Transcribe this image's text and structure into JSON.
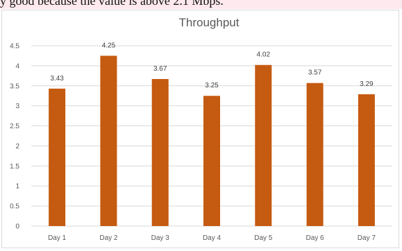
{
  "caption_text": "y good because the value is above 2.1 Mbps.",
  "chart_data": {
    "type": "bar",
    "title": "Throughput",
    "xlabel": "",
    "ylabel": "",
    "categories": [
      "Day 1",
      "Day 2",
      "Day 3",
      "Day 4",
      "Day 5",
      "Day 6",
      "Day 7"
    ],
    "values": [
      3.43,
      4.25,
      3.67,
      3.25,
      4.02,
      3.57,
      3.29
    ],
    "value_labels": [
      "3.43",
      "4.25",
      "3.67",
      "3.25",
      "4.02",
      "3.57",
      "3.29"
    ],
    "ylim": [
      0,
      4.5
    ],
    "yticks": [
      0,
      0.5,
      1,
      1.5,
      2,
      2.5,
      3,
      3.5,
      4,
      4.5
    ],
    "ytick_labels": [
      "0",
      "0.5",
      "1",
      "1.5",
      "2",
      "2.5",
      "3",
      "3.5",
      "4",
      "4.5"
    ],
    "grid": true,
    "legend": "none",
    "bar_color": "#c55a11",
    "grid_color": "#d9d9d9"
  }
}
